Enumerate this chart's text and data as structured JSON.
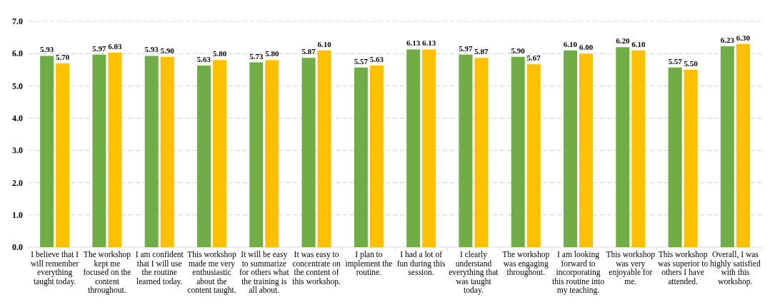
{
  "chart_data": {
    "type": "bar",
    "categories": [
      "I believe that I will remember everything taught today.",
      "The workshop kept me focused on the content throughout.",
      "I am confident that I will use the routine learned today.",
      "This workshop made me very enthusiastic about the content taught.",
      "It will be easy to summarize for others what the training is all about.",
      "It was easy to concentrate on the content of this workshop.",
      "I plan to implement the routine.",
      "I had a lot of fun during this session.",
      "I clearly understand everything that was taught today.",
      "The workshop was engaging throughout.",
      "I am looking forward to incorporating this routine into my teaching.",
      "This workshop was very enjoyable for me.",
      "This workshop was superior to others I have attended.",
      "Overall, I was highly satisfied with this workshop."
    ],
    "series": [
      {
        "color": "#70ad47",
        "values": [
          5.93,
          5.97,
          5.93,
          5.63,
          5.73,
          5.87,
          5.57,
          6.13,
          5.97,
          5.9,
          6.1,
          6.2,
          5.57,
          6.23
        ],
        "value_labels": [
          "5.93",
          "5.97",
          "5.93",
          "5.63",
          "5.73",
          "5.87",
          "5.57",
          "6.13",
          "5.97",
          "5.90",
          "6.10",
          "6.20",
          "5.57",
          "6.23"
        ]
      },
      {
        "color": "#ffc000",
        "values": [
          5.7,
          6.03,
          5.9,
          5.8,
          5.8,
          6.1,
          5.63,
          6.13,
          5.87,
          5.67,
          6.0,
          6.1,
          5.5,
          6.3
        ],
        "value_labels": [
          "5.70",
          "6.03",
          "5.90",
          "5.80",
          "5.80",
          "6.10",
          "5.63",
          "6.13",
          "5.87",
          "5.67",
          "6.00",
          "6.10",
          "5.50",
          "6.30"
        ]
      }
    ],
    "ylim": [
      0,
      7
    ],
    "yticks": [
      {
        "value": 0,
        "label": "0.0"
      },
      {
        "value": 1,
        "label": "1.0"
      },
      {
        "value": 2,
        "label": "2.0"
      },
      {
        "value": 3,
        "label": "3.0"
      },
      {
        "value": 4,
        "label": "4.0"
      },
      {
        "value": 5,
        "label": "5.0"
      },
      {
        "value": 6,
        "label": "6.0"
      },
      {
        "value": 7,
        "label": "7.0"
      }
    ],
    "grid": "y"
  }
}
